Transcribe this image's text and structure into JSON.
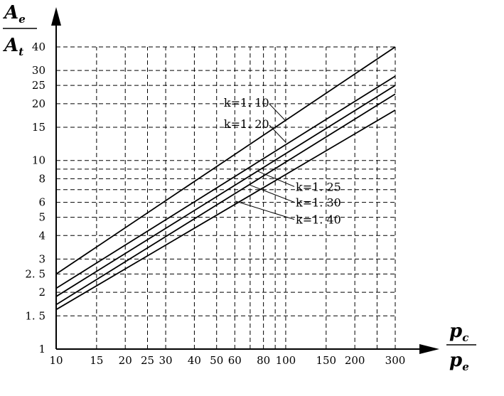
{
  "chart_data": {
    "type": "line",
    "x_scale": "log",
    "y_scale": "log",
    "xlim": [
      10,
      300
    ],
    "ylim": [
      1,
      40
    ],
    "grid": true,
    "x_ticks": [
      10,
      15,
      20,
      25,
      30,
      40,
      50,
      60,
      80,
      100,
      150,
      200,
      300
    ],
    "x_tick_labels": [
      "10",
      "15",
      "20",
      "25",
      "30",
      "40",
      "50",
      "60",
      "80",
      "100",
      "150",
      "200",
      "300"
    ],
    "x_grid": [
      15,
      20,
      25,
      30,
      40,
      50,
      60,
      70,
      80,
      90,
      100,
      150,
      200,
      250,
      300
    ],
    "y_ticks": [
      1,
      1.5,
      2,
      2.5,
      3,
      4,
      5,
      6,
      8,
      10,
      15,
      20,
      25,
      30,
      40
    ],
    "y_tick_labels": [
      "1",
      "1. 5",
      "2",
      "2. 5",
      "3",
      "4",
      "5",
      "6",
      "8",
      "10",
      "15",
      "20",
      "25",
      "30",
      "40"
    ],
    "y_grid": [
      1.5,
      2,
      2.5,
      3,
      4,
      5,
      6,
      7,
      8,
      9,
      10,
      15,
      20,
      25,
      30,
      40
    ],
    "ylabel": {
      "num_sym": "A",
      "num_sub": "e",
      "den_sym": "A",
      "den_sub": "t"
    },
    "xlabel": {
      "num_sym": "p",
      "num_sub": "c",
      "den_sym": "p",
      "den_sub": "e"
    },
    "series": [
      {
        "name": "k=1. 10",
        "x": [
          10,
          300
        ],
        "y": [
          2.5,
          40
        ]
      },
      {
        "name": "k=1. 20",
        "x": [
          10,
          300
        ],
        "y": [
          2.1,
          28
        ]
      },
      {
        "name": "k=1. 25",
        "x": [
          10,
          300
        ],
        "y": [
          1.9,
          25
        ]
      },
      {
        "name": "k=1. 30",
        "x": [
          10,
          300
        ],
        "y": [
          1.72,
          22.5
        ]
      },
      {
        "name": "k=1. 40",
        "x": [
          10,
          300
        ],
        "y": [
          1.62,
          18.5
        ]
      }
    ],
    "annotations": [
      {
        "series": 0,
        "text": "k=1. 10",
        "point": [
          100,
          16.2
        ],
        "side": "left"
      },
      {
        "series": 1,
        "text": "k=1. 20",
        "point": [
          100,
          12.5
        ],
        "side": "left"
      },
      {
        "series": 2,
        "text": "k=1. 25",
        "point": [
          75,
          8.8
        ],
        "side": "right"
      },
      {
        "series": 3,
        "text": "k=1. 30",
        "point": [
          70,
          7.4
        ],
        "side": "right"
      },
      {
        "series": 4,
        "text": "k=1. 40",
        "point": [
          60,
          6.1
        ],
        "side": "right"
      }
    ]
  }
}
